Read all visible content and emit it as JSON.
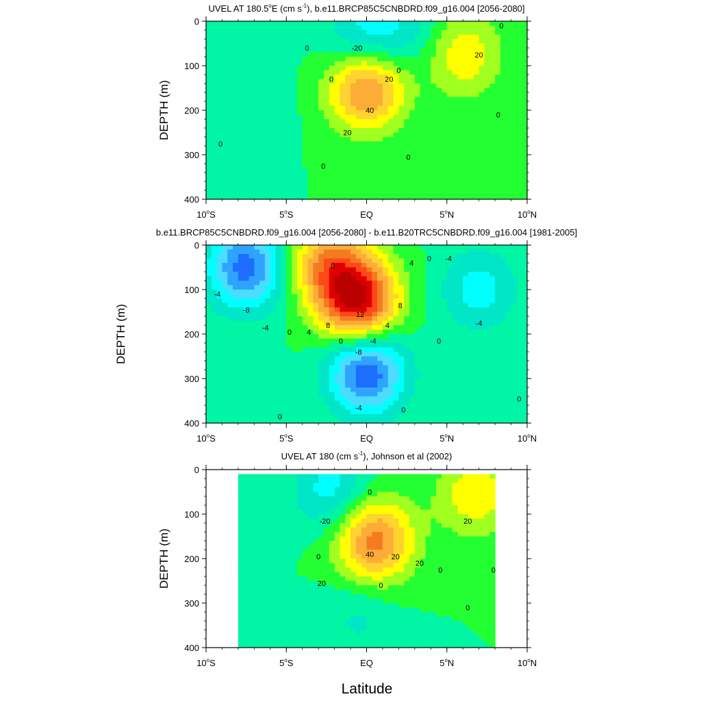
{
  "figure": {
    "xlabel": "Latitude"
  },
  "chart_data": [
    {
      "type": "heatmap",
      "title": "UVEL AT 180.5",
      "title_deg": "o",
      "title_tail": "E (cm s",
      "title_exp": "-1",
      "title_end": "), b.e11.BRCP85C5CNBDRD.f09_g16.004 [2056-2080]",
      "ylabel": "DEPTH (m)",
      "xlim": [
        -10,
        10
      ],
      "ylim": [
        400,
        0
      ],
      "x_ticks": [
        {
          "value": -10,
          "num": "10",
          "deg": "o",
          "hemi": "S"
        },
        {
          "value": -5,
          "num": "5",
          "deg": "o",
          "hemi": "S"
        },
        {
          "value": 0,
          "num": "EQ",
          "deg": "",
          "hemi": ""
        },
        {
          "value": 5,
          "num": "5",
          "deg": "o",
          "hemi": "N"
        },
        {
          "value": 10,
          "num": "10",
          "deg": "o",
          "hemi": "N"
        }
      ],
      "y_ticks": [
        0,
        100,
        200,
        300,
        400
      ],
      "contour_interval": 10,
      "features": [
        {
          "kind": "max",
          "lat": 0,
          "depth": 150,
          "value": 55
        },
        {
          "kind": "max",
          "lat": 6,
          "depth": 75,
          "value": 28
        },
        {
          "kind": "min",
          "lat": -0.2,
          "depth": 35,
          "value": -25
        },
        {
          "kind": "min",
          "lat": 2.5,
          "depth": 20,
          "value": -15
        },
        {
          "kind": "min",
          "lat": -7,
          "depth": 180,
          "value": -8
        }
      ],
      "contour_labels": [
        {
          "lat": -3.7,
          "depth": 60,
          "text": "0"
        },
        {
          "lat": -0.6,
          "depth": 60,
          "text": "-20"
        },
        {
          "lat": -2.2,
          "depth": 130,
          "text": "0"
        },
        {
          "lat": 1.4,
          "depth": 130,
          "text": "20"
        },
        {
          "lat": 2.0,
          "depth": 110,
          "text": "0"
        },
        {
          "lat": 0.2,
          "depth": 200,
          "text": "40"
        },
        {
          "lat": -1.2,
          "depth": 250,
          "text": "20"
        },
        {
          "lat": 7.0,
          "depth": 75,
          "text": "20"
        },
        {
          "lat": 8.4,
          "depth": 10,
          "text": "0"
        },
        {
          "lat": 8.2,
          "depth": 210,
          "text": "0"
        },
        {
          "lat": -9.1,
          "depth": 275,
          "text": "0"
        },
        {
          "lat": -2.7,
          "depth": 325,
          "text": "0"
        },
        {
          "lat": 2.6,
          "depth": 305,
          "text": "0"
        }
      ]
    },
    {
      "type": "heatmap",
      "title": "b.e11.BRCP85C5CNBDRD.f09_g16.004 [2056-2080] - b.e11.B20TRC5CNBDRD.f09_g16.004 [1981-2005]",
      "ylabel": "DEPTH (m)",
      "xlim": [
        -10,
        10
      ],
      "ylim": [
        400,
        0
      ],
      "x_ticks": [
        {
          "value": -10,
          "num": "10",
          "deg": "o",
          "hemi": "S"
        },
        {
          "value": -5,
          "num": "5",
          "deg": "o",
          "hemi": "S"
        },
        {
          "value": 0,
          "num": "EQ",
          "deg": "",
          "hemi": ""
        },
        {
          "value": 5,
          "num": "5",
          "deg": "o",
          "hemi": "N"
        },
        {
          "value": 10,
          "num": "10",
          "deg": "o",
          "hemi": "N"
        }
      ],
      "y_ticks": [
        0,
        100,
        200,
        300,
        400
      ],
      "contour_interval": 2,
      "features": [
        {
          "kind": "max",
          "lat": -0.5,
          "depth": 125,
          "value": 16
        },
        {
          "kind": "max",
          "lat": -2.5,
          "depth": 40,
          "value": 9
        },
        {
          "kind": "min",
          "lat": -7.5,
          "depth": 50,
          "value": -11
        },
        {
          "kind": "min",
          "lat": 0,
          "depth": 285,
          "value": -12
        },
        {
          "kind": "min",
          "lat": 7,
          "depth": 100,
          "value": -5
        }
      ],
      "contour_labels": [
        {
          "lat": -2.1,
          "depth": 45,
          "text": "8"
        },
        {
          "lat": 2.8,
          "depth": 40,
          "text": "4"
        },
        {
          "lat": 3.9,
          "depth": 30,
          "text": "0"
        },
        {
          "lat": 5.1,
          "depth": 30,
          "text": "-4"
        },
        {
          "lat": -9.3,
          "depth": 110,
          "text": "-4"
        },
        {
          "lat": -7.5,
          "depth": 145,
          "text": "-8"
        },
        {
          "lat": -6.3,
          "depth": 185,
          "text": "-4"
        },
        {
          "lat": -4.8,
          "depth": 195,
          "text": "0"
        },
        {
          "lat": -3.6,
          "depth": 195,
          "text": "4"
        },
        {
          "lat": -2.4,
          "depth": 180,
          "text": "8"
        },
        {
          "lat": -0.4,
          "depth": 155,
          "text": "12"
        },
        {
          "lat": 2.1,
          "depth": 135,
          "text": "8"
        },
        {
          "lat": 1.3,
          "depth": 180,
          "text": "4"
        },
        {
          "lat": -1.6,
          "depth": 215,
          "text": "0"
        },
        {
          "lat": 0.4,
          "depth": 215,
          "text": "-4"
        },
        {
          "lat": -0.5,
          "depth": 240,
          "text": "-8"
        },
        {
          "lat": -0.5,
          "depth": 365,
          "text": "-4"
        },
        {
          "lat": 4.5,
          "depth": 215,
          "text": "0"
        },
        {
          "lat": 7.0,
          "depth": 175,
          "text": "-4"
        },
        {
          "lat": -5.4,
          "depth": 385,
          "text": "0"
        },
        {
          "lat": 2.3,
          "depth": 370,
          "text": "0"
        },
        {
          "lat": 9.5,
          "depth": 345,
          "text": "0"
        }
      ]
    },
    {
      "type": "heatmap",
      "title": "UVEL AT 180 (cm s",
      "title_exp": "-1",
      "title_end": "), Johnson et al (2002)",
      "ylabel": "DEPTH (m)",
      "xlim": [
        -10,
        10
      ],
      "ylim": [
        400,
        0
      ],
      "x_ticks": [
        {
          "value": -10,
          "num": "10",
          "deg": "o",
          "hemi": "S"
        },
        {
          "value": -5,
          "num": "5",
          "deg": "o",
          "hemi": "S"
        },
        {
          "value": 0,
          "num": "EQ",
          "deg": "",
          "hemi": ""
        },
        {
          "value": 5,
          "num": "5",
          "deg": "o",
          "hemi": "N"
        },
        {
          "value": 10,
          "num": "10",
          "deg": "o",
          "hemi": "N"
        }
      ],
      "y_ticks": [
        0,
        100,
        200,
        300,
        400
      ],
      "contour_interval": 10,
      "data_extent": {
        "lat": [
          -8,
          8
        ],
        "depth": [
          10,
          400
        ]
      },
      "features": [
        {
          "kind": "max",
          "lat": 0.5,
          "depth": 160,
          "value": 55
        },
        {
          "kind": "max",
          "lat": 6.8,
          "depth": 55,
          "value": 28
        },
        {
          "kind": "min",
          "lat": -2.2,
          "depth": 45,
          "value": -25
        },
        {
          "kind": "min",
          "lat": -0.5,
          "depth": 330,
          "value": -12
        }
      ],
      "contour_labels": [
        {
          "lat": 0.2,
          "depth": 50,
          "text": "0"
        },
        {
          "lat": -2.6,
          "depth": 115,
          "text": "-20"
        },
        {
          "lat": 6.3,
          "depth": 115,
          "text": "20"
        },
        {
          "lat": -3.0,
          "depth": 195,
          "text": "0"
        },
        {
          "lat": 0.2,
          "depth": 190,
          "text": "40"
        },
        {
          "lat": 1.8,
          "depth": 195,
          "text": "20"
        },
        {
          "lat": 3.3,
          "depth": 210,
          "text": "20"
        },
        {
          "lat": -2.8,
          "depth": 255,
          "text": "20"
        },
        {
          "lat": 0.9,
          "depth": 260,
          "text": "0"
        },
        {
          "lat": 4.6,
          "depth": 225,
          "text": "0"
        },
        {
          "lat": 7.9,
          "depth": 225,
          "text": "0"
        },
        {
          "lat": 6.3,
          "depth": 310,
          "text": "0"
        }
      ]
    }
  ]
}
